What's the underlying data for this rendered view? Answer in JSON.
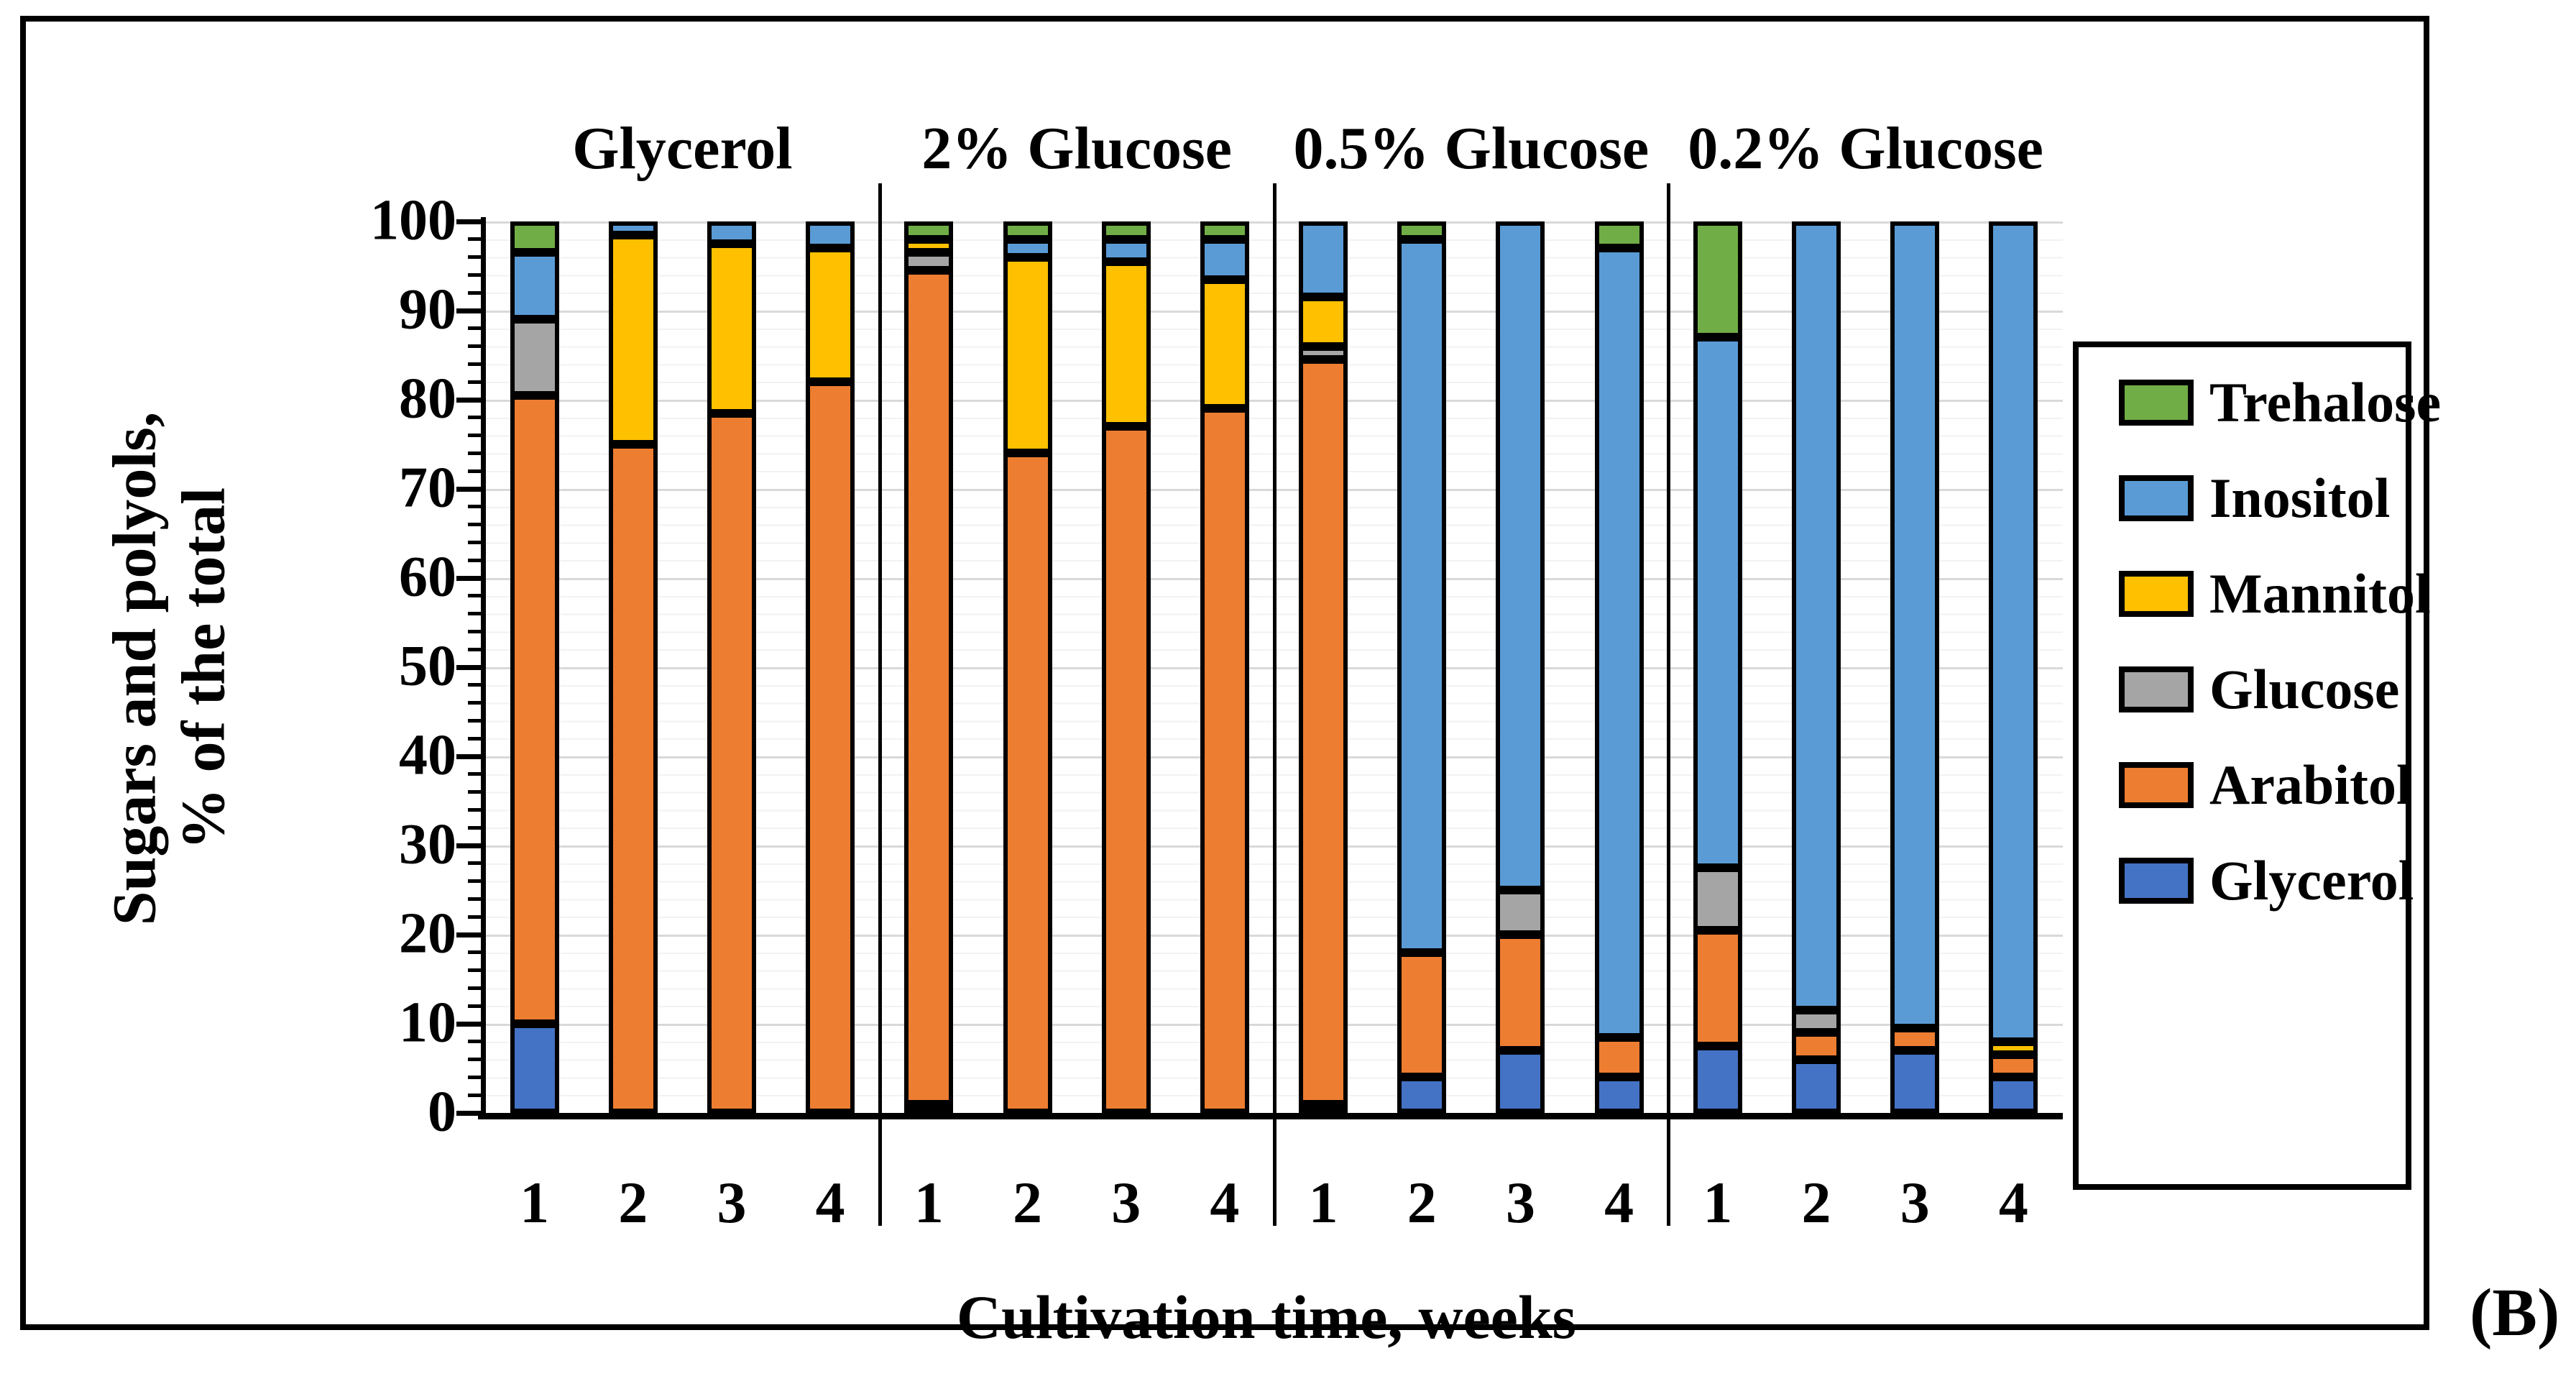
{
  "figure_label": "(B)",
  "chart_data": {
    "type": "bar",
    "variant": "stacked-100-percent",
    "title": "",
    "xlabel": "Cultivation time, weeks",
    "ylabel_lines": [
      "Sugars and polyols,",
      "% of the total"
    ],
    "ylim": [
      0,
      100
    ],
    "yticks": [
      0,
      10,
      20,
      30,
      40,
      50,
      60,
      70,
      80,
      90,
      100
    ],
    "minor_tick_step": 2,
    "grid": {
      "major_color": "#d9d9d9",
      "minor_color": "#f2f2f2",
      "horizontal": true
    },
    "week_labels": [
      "1",
      "2",
      "3",
      "4"
    ],
    "series_bottom_to_top": [
      "Glycerol",
      "Arabitol",
      "Glucose",
      "Mannitol",
      "Inositol",
      "Trehalose"
    ],
    "colors": {
      "Glycerol": "#4472C4",
      "Arabitol": "#ED7D31",
      "Glucose": "#A5A5A5",
      "Mannitol": "#FFC000",
      "Inositol": "#5B9BD5",
      "Trehalose": "#70AD47"
    },
    "groups": [
      {
        "label": "Glycerol",
        "bars": [
          {
            "week": "1",
            "values": [
              10,
              70.5,
              8.5,
              0,
              7.5,
              3.5
            ]
          },
          {
            "week": "2",
            "values": [
              0,
              75,
              0,
              23.5,
              1.5,
              0
            ]
          },
          {
            "week": "3",
            "values": [
              0,
              78.5,
              0,
              19,
              2.5,
              0
            ]
          },
          {
            "week": "4",
            "values": [
              0,
              82,
              0,
              15,
              3,
              0
            ]
          }
        ]
      },
      {
        "label": "2% Glucose",
        "bars": [
          {
            "week": "1",
            "values": [
              1,
              93.5,
              2,
              1.5,
              0,
              2
            ]
          },
          {
            "week": "2",
            "values": [
              0,
              74,
              0,
              22,
              2,
              2
            ]
          },
          {
            "week": "3",
            "values": [
              0,
              77,
              0,
              18.5,
              2.5,
              2
            ]
          },
          {
            "week": "4",
            "values": [
              0,
              79,
              0,
              14.5,
              4.5,
              2
            ]
          }
        ]
      },
      {
        "label": "0.5% Glucose",
        "bars": [
          {
            "week": "1",
            "values": [
              1,
              83.5,
              1.5,
              5.5,
              8.5,
              0
            ]
          },
          {
            "week": "2",
            "values": [
              4,
              14,
              0,
              0,
              80,
              2
            ]
          },
          {
            "week": "3",
            "values": [
              7,
              13,
              5,
              0,
              75,
              0
            ]
          },
          {
            "week": "4",
            "values": [
              4,
              4.5,
              0,
              0,
              88.5,
              3
            ]
          }
        ]
      },
      {
        "label": "0.2% Glucose",
        "bars": [
          {
            "week": "1",
            "values": [
              7.5,
              13,
              7,
              0,
              59.5,
              13
            ]
          },
          {
            "week": "2",
            "values": [
              6,
              3,
              2.5,
              0,
              88.5,
              0
            ]
          },
          {
            "week": "3",
            "values": [
              7,
              2.5,
              0,
              0,
              90.5,
              0
            ]
          },
          {
            "week": "4",
            "values": [
              4,
              2.5,
              0,
              1.5,
              92,
              0
            ]
          }
        ]
      }
    ]
  },
  "legend": {
    "items": [
      {
        "label": "Trehalose",
        "color": "#70AD47"
      },
      {
        "label": "Inositol",
        "color": "#5B9BD5"
      },
      {
        "label": "Mannitol",
        "color": "#FFC000"
      },
      {
        "label": "Glucose",
        "color": "#A5A5A5"
      },
      {
        "label": "Arabitol",
        "color": "#ED7D31"
      },
      {
        "label": "Glycerol",
        "color": "#4472C4"
      }
    ]
  }
}
